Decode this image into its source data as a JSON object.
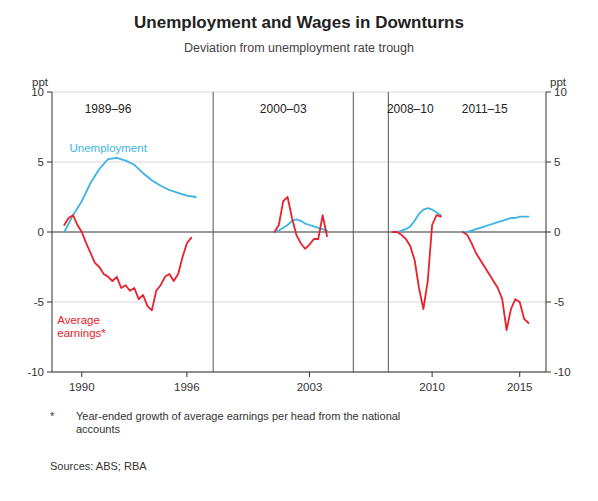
{
  "chart_data": {
    "type": "line",
    "title": "Unemployment and Wages in Downturns",
    "subtitle": "Deviation from unemployment rate trough",
    "ylabel": "ppt",
    "y2label": "ppt",
    "xlim": [
      1988.3,
      2016.5
    ],
    "xticks": [
      1990,
      1996,
      2003,
      2010,
      2015
    ],
    "ylim": [
      -10,
      10
    ],
    "yticks": [
      -10,
      -5,
      0,
      5,
      10
    ],
    "y2lim": [
      -10,
      10
    ],
    "y2ticks": [
      -10,
      -5,
      0,
      5,
      10
    ],
    "grid": true,
    "vlines": [
      1997.5,
      2005.5,
      2007.5
    ],
    "period_labels": [
      {
        "text": "1989–96",
        "x": 1991.5,
        "y": 9.3
      },
      {
        "text": "2000–03",
        "x": 2001.5,
        "y": 9.3
      },
      {
        "text": "2008–10",
        "x": 2008.75,
        "y": 9.3
      },
      {
        "text": "2011–15",
        "x": 2013.0,
        "y": 9.3
      }
    ],
    "line_labels": [
      {
        "text": "Unemployment",
        "x": 1989.3,
        "y": 6.5,
        "color": "#3cb4e5"
      },
      {
        "text": "Average\nearnings*",
        "x": 1988.6,
        "y": -5.8,
        "color": "#e8212b"
      }
    ],
    "footnote_star": "*",
    "footnote_text": "Year-ended growth of average earnings per head from the national\naccounts",
    "sources": "Sources:  ABS; RBA",
    "series": [
      {
        "color": "#3cb4e5",
        "x": [
          1989.0,
          1989.5,
          1990.0,
          1990.5,
          1991.0,
          1991.5,
          1992.0,
          1992.5,
          1993.0,
          1993.5,
          1994.0,
          1994.5,
          1995.0,
          1995.5,
          1996.0,
          1996.5
        ],
        "values": [
          0.0,
          1.2,
          2.2,
          3.5,
          4.5,
          5.2,
          5.3,
          5.1,
          4.8,
          4.2,
          3.7,
          3.3,
          3.0,
          2.8,
          2.6,
          2.5
        ]
      },
      {
        "color": "#3cb4e5",
        "x": [
          2001.0,
          2001.25,
          2001.5,
          2001.75,
          2002.0,
          2002.25,
          2002.5,
          2002.75,
          2003.0,
          2003.25,
          2003.5,
          2004.0
        ],
        "values": [
          0.0,
          0.1,
          0.3,
          0.5,
          0.8,
          0.9,
          0.8,
          0.6,
          0.5,
          0.4,
          0.3,
          0.1
        ]
      },
      {
        "color": "#3cb4e5",
        "x": [
          2007.75,
          2008.0,
          2008.25,
          2008.5,
          2008.75,
          2009.0,
          2009.25,
          2009.5,
          2009.75,
          2010.0,
          2010.25,
          2010.5
        ],
        "values": [
          0.0,
          0.0,
          0.1,
          0.2,
          0.4,
          0.8,
          1.3,
          1.6,
          1.7,
          1.6,
          1.4,
          1.2
        ]
      },
      {
        "color": "#3cb4e5",
        "x": [
          2011.75,
          2012.0,
          2012.25,
          2012.5,
          2012.75,
          2013.0,
          2013.25,
          2013.5,
          2013.75,
          2014.0,
          2014.25,
          2014.5,
          2014.75,
          2015.0,
          2015.25,
          2015.5
        ],
        "values": [
          0.0,
          0.0,
          0.1,
          0.2,
          0.3,
          0.4,
          0.5,
          0.6,
          0.7,
          0.8,
          0.9,
          1.0,
          1.0,
          1.1,
          1.1,
          1.1
        ]
      },
      {
        "color": "#e8212b",
        "x": [
          1989.0,
          1989.25,
          1989.5,
          1989.75,
          1990.0,
          1990.25,
          1990.5,
          1990.75,
          1991.0,
          1991.25,
          1991.5,
          1991.75,
          1992.0,
          1992.25,
          1992.5,
          1992.75,
          1993.0,
          1993.25,
          1993.5,
          1993.75,
          1994.0,
          1994.25,
          1994.5,
          1994.75,
          1995.0,
          1995.25,
          1995.5,
          1995.75,
          1996.0,
          1996.25
        ],
        "values": [
          0.5,
          1.0,
          1.2,
          0.5,
          0.0,
          -0.8,
          -1.5,
          -2.2,
          -2.5,
          -3.0,
          -3.2,
          -3.5,
          -3.2,
          -4.0,
          -3.8,
          -4.2,
          -4.0,
          -4.8,
          -4.5,
          -5.3,
          -5.6,
          -4.2,
          -3.8,
          -3.2,
          -3.0,
          -3.5,
          -3.0,
          -1.8,
          -0.8,
          -0.4
        ]
      },
      {
        "color": "#e8212b",
        "x": [
          2001.0,
          2001.25,
          2001.5,
          2001.75,
          2002.0,
          2002.25,
          2002.5,
          2002.75,
          2003.0,
          2003.25,
          2003.5,
          2003.75,
          2004.0
        ],
        "values": [
          0.0,
          0.5,
          2.2,
          2.5,
          1.0,
          -0.2,
          -0.8,
          -1.2,
          -0.9,
          -0.5,
          -0.5,
          1.2,
          -0.3
        ]
      },
      {
        "color": "#e8212b",
        "x": [
          2007.75,
          2008.0,
          2008.25,
          2008.5,
          2008.75,
          2009.0,
          2009.25,
          2009.5,
          2009.75,
          2010.0,
          2010.25,
          2010.5
        ],
        "values": [
          0.0,
          0.0,
          -0.2,
          -0.5,
          -1.0,
          -2.0,
          -4.0,
          -5.5,
          -3.5,
          0.5,
          1.2,
          1.1
        ]
      },
      {
        "color": "#e8212b",
        "x": [
          2011.75,
          2012.0,
          2012.25,
          2012.5,
          2012.75,
          2013.0,
          2013.25,
          2013.5,
          2013.75,
          2014.0,
          2014.25,
          2014.5,
          2014.75,
          2015.0,
          2015.25,
          2015.5
        ],
        "values": [
          0.0,
          -0.2,
          -0.8,
          -1.5,
          -2.0,
          -2.5,
          -3.0,
          -3.5,
          -4.0,
          -4.8,
          -7.0,
          -5.5,
          -4.8,
          -5.0,
          -6.2,
          -6.5
        ]
      }
    ]
  }
}
